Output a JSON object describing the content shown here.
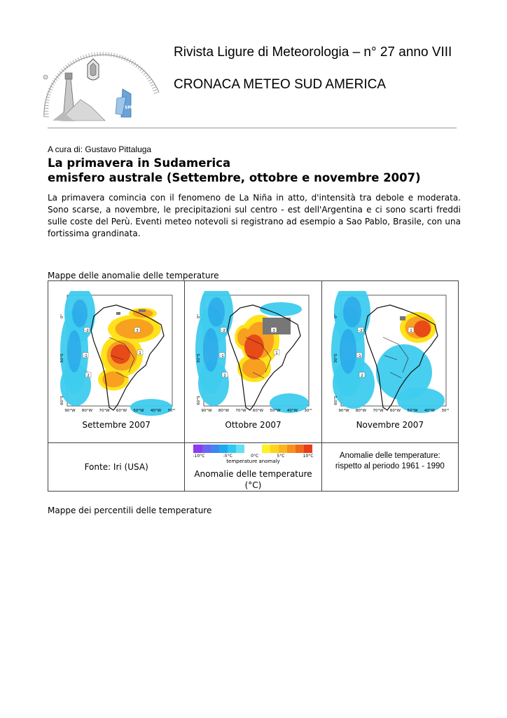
{
  "header": {
    "title": "Rivista Ligure di Meteorologia – n° 27 anno VIII",
    "subtitle": "CRONACA METEO SUD AMERICA",
    "logo_badge": "SMI"
  },
  "article": {
    "author": "A cura di: Gustavo Pittaluga",
    "title_line1": "La primavera in Sudamerica",
    "title_line2": "emisfero australe (Settembre, ottobre e novembre 2007)",
    "intro": "La primavera comincia con il fenomeno de La Niña in atto, d'intensità tra debole e moderata. Sono scarse, a novembre, le precipitazioni sul centro - est dell'Argentina e ci sono scarti freddi sulle coste del Perù. Eventi meteo notevoli si registrano ad esempio a Sao Pablo, Brasile, con una fortissima grandinata."
  },
  "section_anomalies": "Mappe delle anomalie delle temperature",
  "maps": {
    "lat_labels": [
      "0°",
      "30°S",
      "60°S"
    ],
    "lon_labels": [
      "90°W",
      "80°W",
      "70°W",
      "60°W",
      "50°W",
      "40°W",
      "30°W"
    ],
    "items": [
      {
        "caption": "Settembre 2007",
        "contour_labels": [
          "-2",
          "-1",
          "2",
          "3",
          "1"
        ]
      },
      {
        "caption": "Ottobre 2007",
        "contour_labels": [
          "-2",
          "-1",
          "2",
          "3",
          "1"
        ]
      },
      {
        "caption": "Novembre 2007",
        "contour_labels": [
          "-2",
          "-1",
          "2",
          "1"
        ]
      }
    ]
  },
  "footer_row": {
    "source": "Fonte: Iri (USA)",
    "scale_ticks": [
      "-10°C",
      "-5°C",
      "0°C",
      "5°C",
      "10°C"
    ],
    "scale_unit": "temperature anomaly",
    "scale_caption": "Anomalie delle temperature (°C)",
    "legend_line1": "Anomalie delle temperature:",
    "legend_line2": "rispetto al periodo 1961 - 1990"
  },
  "section_percentiles": "Mappe dei percentili delle temperature",
  "colors": {
    "cold_light": "#3ecbee",
    "cold_mid": "#1a8fe8",
    "warm_yellow": "#ffe21a",
    "warm_orange": "#f8a020",
    "warm_red": "#e84a18",
    "missing": "#777777"
  }
}
